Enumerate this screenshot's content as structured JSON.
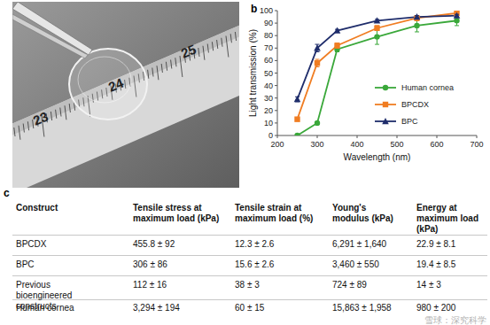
{
  "panel_labels": [
    "a",
    "b",
    "c"
  ],
  "photo": {
    "ruler_labels": [
      "23",
      "24",
      "25"
    ]
  },
  "chart_data": {
    "type": "line",
    "x_label": "Wavelength (nm)",
    "y_label": "Light transmission (%)",
    "x": [
      250,
      300,
      350,
      450,
      550,
      650
    ],
    "series": [
      {
        "name": "Human cornea",
        "color": "#3aa83a",
        "marker": "circle",
        "values": [
          0,
          10,
          69,
          79,
          88,
          92
        ],
        "errors": [
          1,
          1,
          2,
          6,
          5,
          4
        ]
      },
      {
        "name": "BPCDX",
        "color": "#f07d22",
        "marker": "square",
        "values": [
          13,
          58,
          72,
          86,
          94,
          98
        ],
        "errors": [
          1,
          3,
          2,
          2,
          2,
          2
        ]
      },
      {
        "name": "BPC",
        "color": "#1f2d6b",
        "marker": "triangle",
        "values": [
          29,
          70,
          84,
          92,
          95,
          96
        ],
        "errors": [
          2,
          3,
          1,
          1,
          1,
          1
        ]
      }
    ],
    "xlim": [
      200,
      700
    ],
    "xticks": [
      200,
      300,
      400,
      500,
      600,
      700
    ],
    "ylim": [
      0,
      100
    ],
    "yticks": [
      0,
      10,
      20,
      30,
      40,
      50,
      60,
      70,
      80,
      90,
      100
    ],
    "legend": "right",
    "grid": false
  },
  "table": {
    "header": [
      "Construct",
      "Tensile stress at maximum load (kPa)",
      "Tensile strain at maximum load (%)",
      "Young's modulus (kPa)",
      "Energy at maximum load (kPa)"
    ],
    "rows": [
      [
        "BPCDX",
        "455.8 ± 92",
        "12.3 ± 2.6",
        "6,291 ± 1,640",
        "22.9 ± 8.1"
      ],
      [
        "BPC",
        "306 ± 86",
        "15.6 ± 2.6",
        "3,460 ± 550",
        "19.4 ± 8.5"
      ],
      [
        "Previous bioengineered constructs",
        "112 ± 16",
        "38 ± 3",
        "724 ± 89",
        "14 ± 3"
      ],
      [
        "Human cornea",
        "3,294 ± 194",
        "60 ± 15",
        "15,863 ± 1,958",
        "980 ± 200"
      ]
    ]
  },
  "watermark": "雪球：深究科学"
}
